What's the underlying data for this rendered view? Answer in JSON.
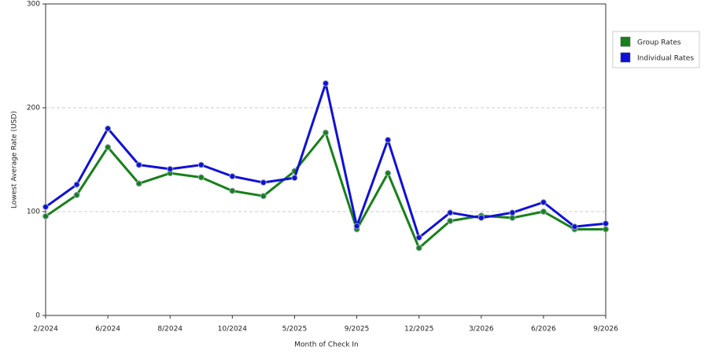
{
  "chart_data": {
    "type": "line",
    "x_label": "Month of Check In",
    "y_label": "Lowest Average Rate (USD)",
    "categories": [
      "2/2024",
      null,
      "6/2024",
      null,
      "8/2024",
      null,
      "10/2024",
      null,
      "5/2025",
      null,
      "9/2025",
      null,
      "12/2025",
      null,
      "3/2026",
      null,
      "6/2026",
      null,
      "9/2026"
    ],
    "series": [
      {
        "name": "Group Rates",
        "color": "#17801a",
        "values": [
          95.5,
          116,
          162,
          127,
          137,
          133,
          120,
          115,
          139,
          176,
          83,
          137,
          65,
          91,
          96,
          94,
          100,
          83,
          83
        ]
      },
      {
        "name": "Individual Rates",
        "color": "#1010d8",
        "values": [
          104.5,
          126,
          180,
          145,
          141,
          145,
          134,
          128,
          132.5,
          223.5,
          86,
          169,
          75,
          99,
          94,
          99,
          109,
          85.5,
          88.5
        ]
      }
    ],
    "ylim": [
      0,
      300
    ],
    "yticks": [
      0,
      100,
      200,
      300
    ],
    "grid": true,
    "legend": "right"
  }
}
